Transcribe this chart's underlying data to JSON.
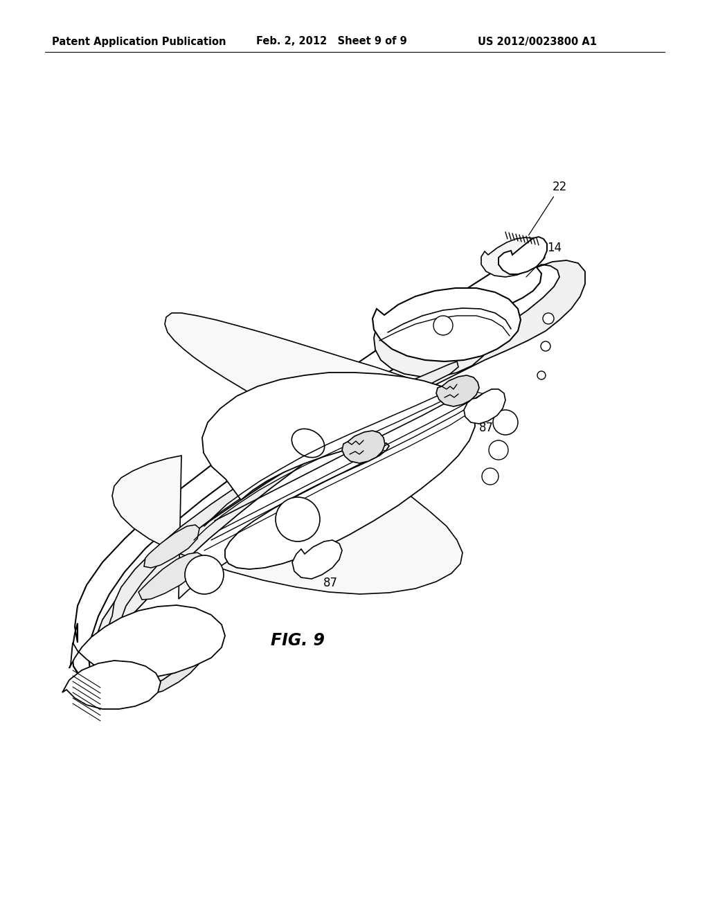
{
  "background_color": "#ffffff",
  "header_left": "Patent Application Publication",
  "header_mid": "Feb. 2, 2012   Sheet 9 of 9",
  "header_right": "US 2012/0023800 A1",
  "fig_label": "FIG. 9",
  "line_color": "#000000",
  "header_fontsize": 10.5,
  "fig_label_fontsize": 17,
  "label_fontsize": 12
}
